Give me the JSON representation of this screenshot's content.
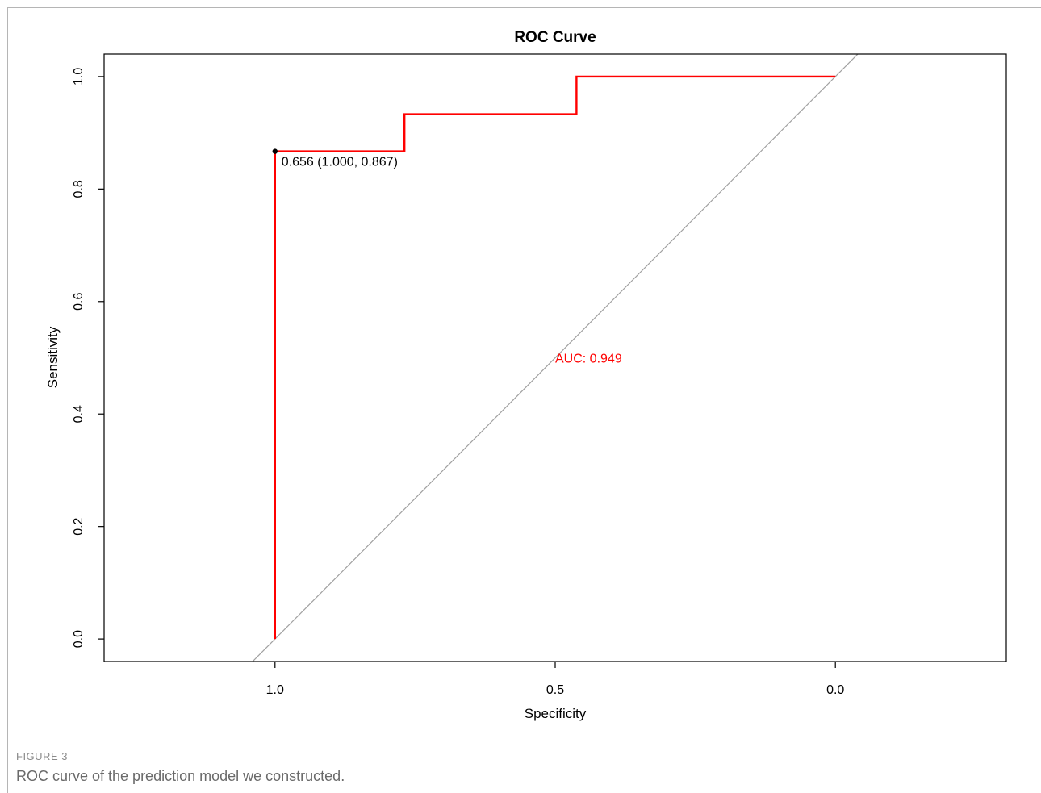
{
  "figure": {
    "label": "FIGURE 3",
    "caption": "ROC curve of the prediction model we constructed."
  },
  "chart_data": {
    "type": "line",
    "title": "ROC Curve",
    "xlabel": "Specificity",
    "ylabel": "Sensitivity",
    "xlim": [
      1.305,
      -0.305
    ],
    "ylim": [
      -0.04,
      1.04
    ],
    "x_reversed": true,
    "grid": false,
    "x_ticks": [
      1.0,
      0.5,
      0.0
    ],
    "x_tick_labels": [
      "1.0",
      "0.5",
      "0.0"
    ],
    "y_ticks": [
      0.0,
      0.2,
      0.4,
      0.6,
      0.8,
      1.0
    ],
    "y_tick_labels": [
      "0.0",
      "0.2",
      "0.4",
      "0.6",
      "0.8",
      "1.0"
    ],
    "series": [
      {
        "specificity": [
          1.0,
          1.0,
          0.769,
          0.769,
          0.462,
          0.462,
          0.0
        ],
        "sensitivity": [
          0.0,
          0.867,
          0.867,
          0.933,
          0.933,
          1.0,
          1.0
        ],
        "color": "#ff0000"
      }
    ],
    "reference_line": {
      "type": "diagonal",
      "from": [
        1.0,
        0.0
      ],
      "to": [
        0.0,
        1.0
      ],
      "color": "#a0a0a0"
    },
    "threshold_point": {
      "specificity": 1.0,
      "sensitivity": 0.867,
      "label": "0.656 (1.000, 0.867)"
    },
    "annotations": [
      {
        "text": "AUC: 0.949",
        "x": 0.5,
        "y": 0.5,
        "color": "#ff0000"
      }
    ]
  }
}
